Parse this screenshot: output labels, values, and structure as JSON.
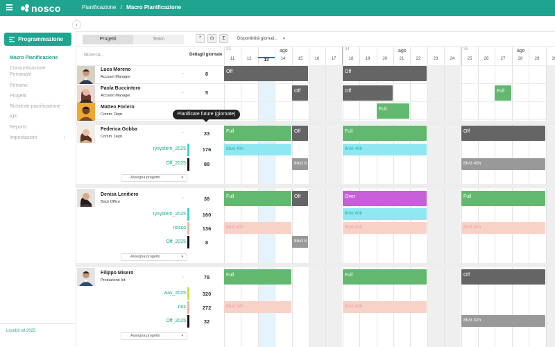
{
  "brand": {
    "logo_text": "nosco",
    "color": "#1fa58f"
  },
  "breadcrumb": {
    "parent": "Pianificazione",
    "separator": "/",
    "current": "Macro Pianificazione"
  },
  "sidebar": {
    "button": "Programmazione",
    "items": [
      {
        "label": "Macro Pianificazione",
        "active": true
      },
      {
        "label": "Consuntivazione",
        "sub": "Personale"
      },
      {
        "label": "Persone"
      },
      {
        "label": "Progetti"
      },
      {
        "label": "Richieste pianificazione"
      },
      {
        "label": "KPI"
      },
      {
        "label": "Reports"
      },
      {
        "label": "Impostazioni"
      }
    ],
    "footer": "Losnbit srl 2025"
  },
  "tabs": {
    "progetti": "Progetti",
    "team": "Team"
  },
  "toolbar": {
    "clock": "◷",
    "sigma": "Σ",
    "dropdown": "Disponibilità giornali...",
    "up": "⌃"
  },
  "search": {
    "placeholder": "Ricerca..."
  },
  "columns": {
    "details": "Dettagli giornate"
  },
  "tooltip": "Pianificate future (giornate)",
  "calendar": {
    "weeks": [
      {
        "number": "33",
        "month": "ago"
      },
      {
        "number": "34",
        "month": "ago"
      },
      {
        "number": "35",
        "month": "ago"
      }
    ],
    "days": [
      "11",
      "12",
      "13",
      "14",
      "15",
      "16",
      "17",
      "18",
      "19",
      "20",
      "21",
      "22",
      "23",
      "24",
      "25",
      "26",
      "27",
      "28",
      "29",
      "30"
    ],
    "today": "13"
  },
  "people": [
    {
      "name": "Luca Moreno",
      "role": "Account Manager",
      "days": "8"
    },
    {
      "name": "Paola Buccintoro",
      "role": "Account Manager",
      "days": "5"
    },
    {
      "name": "Matteo Foriero",
      "role": "Comm. Dept.",
      "days": ""
    },
    {
      "name": "Federica Gobba",
      "role": "Comm. Dept.",
      "days": "33",
      "projects": [
        {
          "name": "rysystem_2025",
          "days": "176"
        },
        {
          "name": "Off_2025",
          "days": "88"
        }
      ]
    },
    {
      "name": "Denisa Lenitiero",
      "role": "Back Office",
      "days": "38",
      "projects": [
        {
          "name": "rysystem_2025",
          "days": "160"
        },
        {
          "name": "nosco",
          "days": "136"
        },
        {
          "name": "Off_2025",
          "days": "8"
        }
      ]
    },
    {
      "name": "Filippo Misero",
      "role": "Produzione Int.",
      "days": "78",
      "projects": [
        {
          "name": "way_2025",
          "days": "320"
        },
        {
          "name": "nos",
          "days": "272"
        },
        {
          "name": "Off_2025",
          "days": "32"
        }
      ]
    }
  ],
  "assign_label": "Assegna progetto",
  "bars": {
    "off": "Off",
    "full": "Full",
    "over": "Over",
    "h_8_40": "8h/d 40h",
    "h_8_8": "8h/d 8",
    "h_8_32": "8h/d 32h",
    "h_8_40b": "8h/d 40h",
    "h_8_40c": "8h/d 40h",
    "h_8_32b": "8h/d 32h"
  },
  "colors": {
    "off": "#656565",
    "full": "#63b86f",
    "over": "#c75fd8",
    "cyan": "#8fe8f1",
    "salmon": "#f8d2c6",
    "grey": "#999999"
  }
}
